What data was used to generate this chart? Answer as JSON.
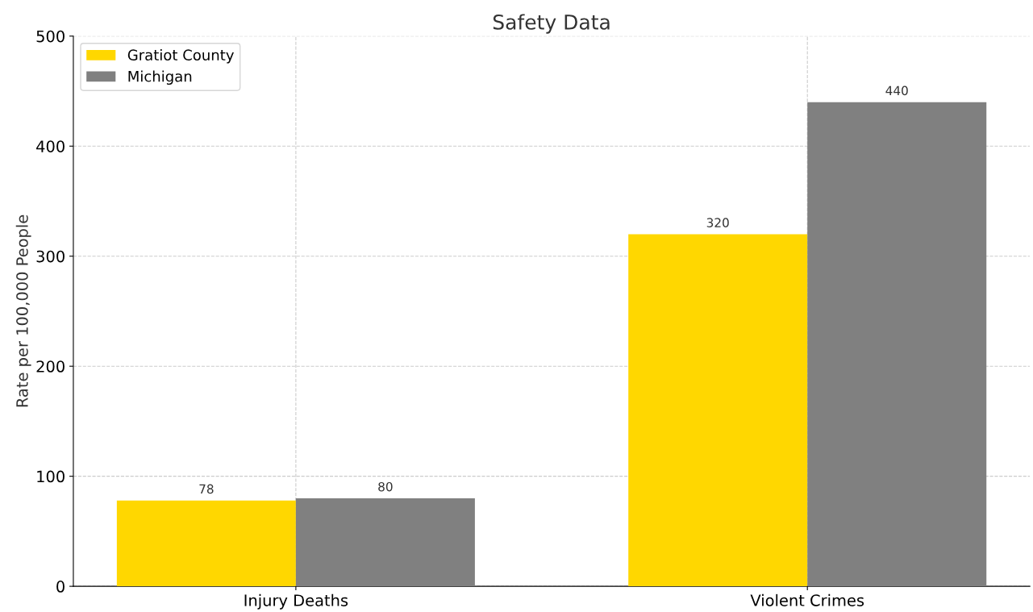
{
  "chart_data": {
    "type": "bar",
    "title": "Safety Data",
    "ylabel": "Rate per 100,000 People",
    "categories": [
      "Injury Deaths",
      "Violent Crimes"
    ],
    "series": [
      {
        "name": "Gratiot County",
        "color": "#ffd700",
        "values": [
          78,
          320
        ]
      },
      {
        "name": "Michigan",
        "color": "#808080",
        "values": [
          80,
          440
        ]
      }
    ],
    "ylim": [
      0,
      500
    ],
    "yticks": [
      0,
      100,
      200,
      300,
      400,
      500
    ],
    "grid": true,
    "legend": "top left",
    "data_labels": true
  }
}
